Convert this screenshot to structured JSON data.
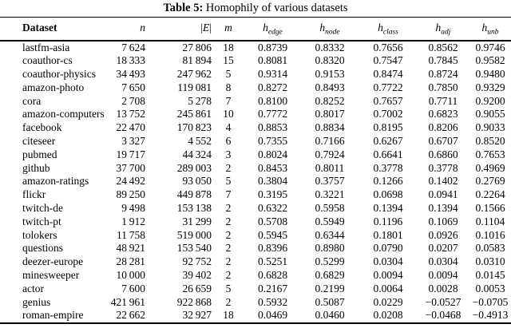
{
  "caption": {
    "label": "Table 5:",
    "text": " Homophily of various datasets"
  },
  "table": {
    "columns": [
      {
        "key": "dataset",
        "label": "Dataset",
        "style": "bold"
      },
      {
        "key": "n",
        "label": "n",
        "style": "math"
      },
      {
        "key": "E",
        "label": "E",
        "style": "math",
        "bars": true
      },
      {
        "key": "m",
        "label": "m",
        "style": "math"
      },
      {
        "key": "h_edge",
        "label": "h",
        "sub": "edge",
        "style": "math"
      },
      {
        "key": "h_node",
        "label": "h",
        "sub": "node",
        "style": "math"
      },
      {
        "key": "h_class",
        "label": "h",
        "sub": "class",
        "style": "math"
      },
      {
        "key": "h_adj",
        "label": "h",
        "sub": "adj",
        "style": "math"
      },
      {
        "key": "h_unb",
        "label": "h",
        "sub": "unb",
        "style": "math"
      }
    ],
    "rows": [
      [
        "lastfm-asia",
        "7 624",
        "27 806",
        "18",
        "0.8739",
        "0.8332",
        "0.7656",
        "0.8562",
        "0.9746"
      ],
      [
        "coauthor-cs",
        "18 333",
        "81 894",
        "15",
        "0.8081",
        "0.8320",
        "0.7547",
        "0.7845",
        "0.9582"
      ],
      [
        "coauthor-physics",
        "34 493",
        "247 962",
        "5",
        "0.9314",
        "0.9153",
        "0.8474",
        "0.8724",
        "0.9480"
      ],
      [
        "amazon-photo",
        "7 650",
        "119 081",
        "8",
        "0.8272",
        "0.8493",
        "0.7722",
        "0.7850",
        "0.9329"
      ],
      [
        "cora",
        "2 708",
        "5 278",
        "7",
        "0.8100",
        "0.8252",
        "0.7657",
        "0.7711",
        "0.9200"
      ],
      [
        "amazon-computers",
        "13 752",
        "245 861",
        "10",
        "0.7772",
        "0.8017",
        "0.7002",
        "0.6823",
        "0.9055"
      ],
      [
        "facebook",
        "22 470",
        "170 823",
        "4",
        "0.8853",
        "0.8834",
        "0.8195",
        "0.8206",
        "0.9033"
      ],
      [
        "citeseer",
        "3 327",
        "4 552",
        "6",
        "0.7355",
        "0.7166",
        "0.6267",
        "0.6707",
        "0.8520"
      ],
      [
        "pubmed",
        "19 717",
        "44 324",
        "3",
        "0.8024",
        "0.7924",
        "0.6641",
        "0.6860",
        "0.7653"
      ],
      [
        "github",
        "37 700",
        "289 003",
        "2",
        "0.8453",
        "0.8011",
        "0.3778",
        "0.3778",
        "0.4969"
      ],
      [
        "amazon-ratings",
        "24 492",
        "93 050",
        "5",
        "0.3804",
        "0.3757",
        "0.1266",
        "0.1402",
        "0.2769"
      ],
      [
        "flickr",
        "89 250",
        "449 878",
        "7",
        "0.3195",
        "0.3221",
        "0.0698",
        "0.0941",
        "0.2264"
      ],
      [
        "twitch-de",
        "9 498",
        "153 138",
        "2",
        "0.6322",
        "0.5958",
        "0.1394",
        "0.1394",
        "0.1566"
      ],
      [
        "twitch-pt",
        "1 912",
        "31 299",
        "2",
        "0.5708",
        "0.5949",
        "0.1196",
        "0.1069",
        "0.1104"
      ],
      [
        "tolokers",
        "11 758",
        "519 000",
        "2",
        "0.5945",
        "0.6344",
        "0.1801",
        "0.0926",
        "0.1016"
      ],
      [
        "questions",
        "48 921",
        "153 540",
        "2",
        "0.8396",
        "0.8980",
        "0.0790",
        "0.0207",
        "0.0583"
      ],
      [
        "deezer-europe",
        "28 281",
        "92 752",
        "2",
        "0.5251",
        "0.5299",
        "0.0304",
        "0.0304",
        "0.0310"
      ],
      [
        "minesweeper",
        "10 000",
        "39 402",
        "2",
        "0.6828",
        "0.6829",
        "0.0094",
        "0.0094",
        "0.0145"
      ],
      [
        "actor",
        "7 600",
        "26 659",
        "5",
        "0.2167",
        "0.2199",
        "0.0064",
        "0.0028",
        "0.0053"
      ],
      [
        "genius",
        "421 961",
        "922 868",
        "2",
        "0.5932",
        "0.5087",
        "0.0229",
        "−0.0527",
        "−0.0705"
      ],
      [
        "roman-empire",
        "22 662",
        "32 927",
        "18",
        "0.0469",
        "0.0460",
        "0.0208",
        "−0.0468",
        "−0.4913"
      ]
    ]
  }
}
